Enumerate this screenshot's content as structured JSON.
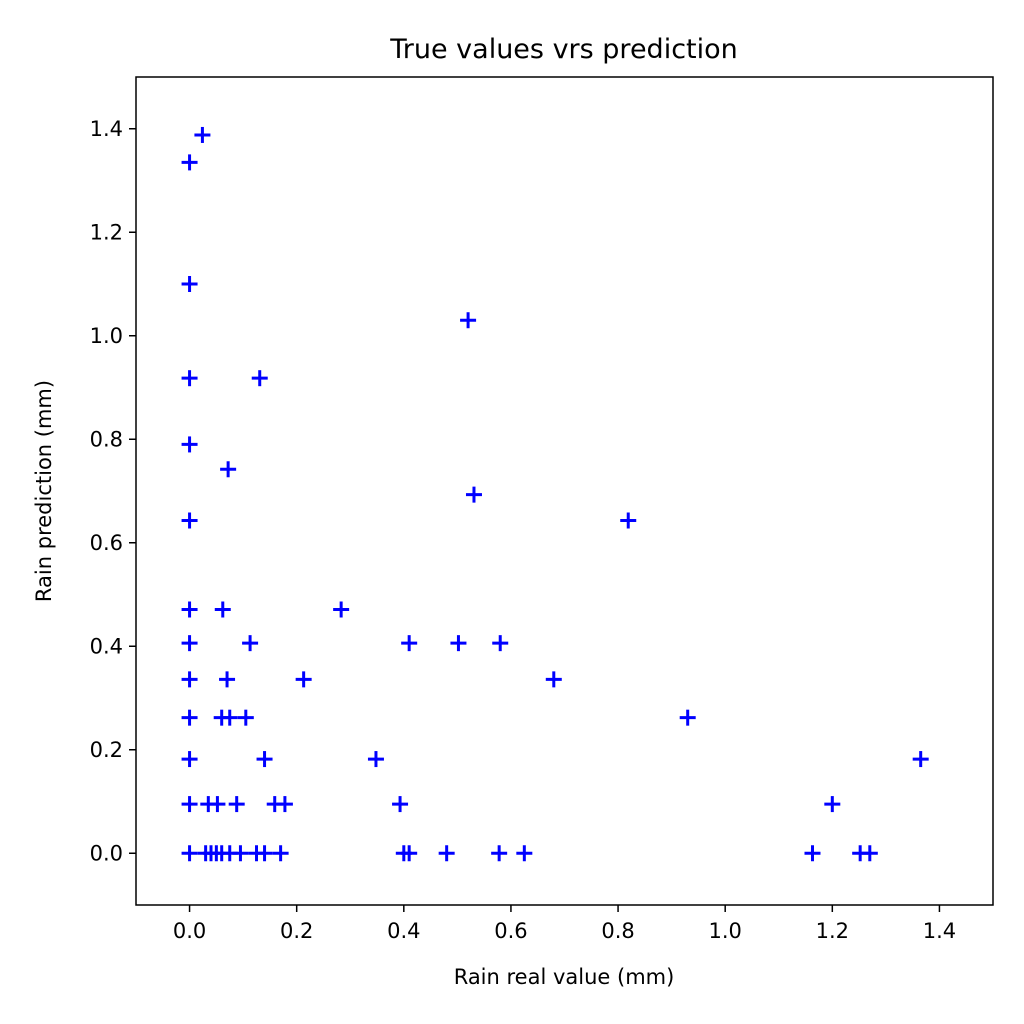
{
  "chart_data": {
    "type": "scatter",
    "title": "True values vrs prediction",
    "xlabel": "Rain real value (mm)",
    "ylabel": "Rain prediction (mm)",
    "xlim": [
      -0.1,
      1.5
    ],
    "ylim": [
      -0.1,
      1.5
    ],
    "xticks": [
      "0.0",
      "0.2",
      "0.4",
      "0.6",
      "0.8",
      "1.0",
      "1.2",
      "1.4"
    ],
    "yticks": [
      "0.0",
      "0.2",
      "0.4",
      "0.6",
      "0.8",
      "1.0",
      "1.2",
      "1.4"
    ],
    "grid": false,
    "marker": "plus",
    "color": "#0000ff",
    "points": [
      [
        0.0,
        1.335
      ],
      [
        0.024,
        1.388
      ],
      [
        0.0,
        1.1
      ],
      [
        0.52,
        1.03
      ],
      [
        0.0,
        0.918
      ],
      [
        0.131,
        0.918
      ],
      [
        0.0,
        0.79
      ],
      [
        0.072,
        0.742
      ],
      [
        0.0,
        0.643
      ],
      [
        0.531,
        0.693
      ],
      [
        0.819,
        0.643
      ],
      [
        0.0,
        0.471
      ],
      [
        0.062,
        0.471
      ],
      [
        0.283,
        0.471
      ],
      [
        0.0,
        0.406
      ],
      [
        0.113,
        0.406
      ],
      [
        0.41,
        0.406
      ],
      [
        0.502,
        0.406
      ],
      [
        0.58,
        0.406
      ],
      [
        0.0,
        0.336
      ],
      [
        0.07,
        0.336
      ],
      [
        0.213,
        0.336
      ],
      [
        0.68,
        0.336
      ],
      [
        0.0,
        0.262
      ],
      [
        0.06,
        0.262
      ],
      [
        0.075,
        0.262
      ],
      [
        0.105,
        0.262
      ],
      [
        0.93,
        0.262
      ],
      [
        0.0,
        0.182
      ],
      [
        0.14,
        0.182
      ],
      [
        0.348,
        0.182
      ],
      [
        1.365,
        0.182
      ],
      [
        0.0,
        0.095
      ],
      [
        0.035,
        0.095
      ],
      [
        0.052,
        0.095
      ],
      [
        0.088,
        0.095
      ],
      [
        0.159,
        0.095
      ],
      [
        0.178,
        0.095
      ],
      [
        0.393,
        0.095
      ],
      [
        1.2,
        0.095
      ],
      [
        0.0,
        0.0
      ],
      [
        0.03,
        0.0
      ],
      [
        0.04,
        0.0
      ],
      [
        0.05,
        0.0
      ],
      [
        0.06,
        0.0
      ],
      [
        0.075,
        0.0
      ],
      [
        0.095,
        0.0
      ],
      [
        0.125,
        0.0
      ],
      [
        0.14,
        0.0
      ],
      [
        0.17,
        0.0
      ],
      [
        0.4,
        0.0
      ],
      [
        0.41,
        0.0
      ],
      [
        0.48,
        0.0
      ],
      [
        0.578,
        0.0
      ],
      [
        0.625,
        0.0
      ],
      [
        1.163,
        0.0
      ],
      [
        1.252,
        0.0
      ],
      [
        1.27,
        0.0
      ]
    ]
  }
}
